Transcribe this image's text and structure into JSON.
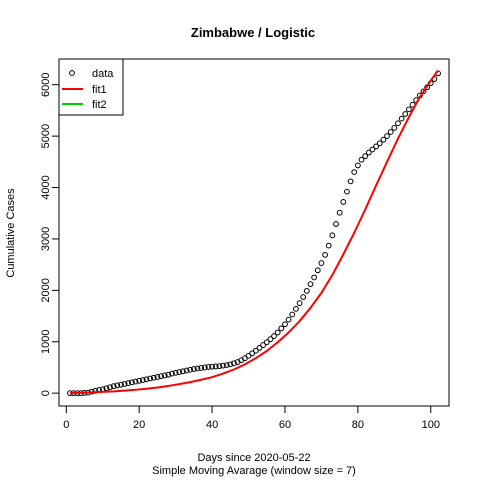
{
  "chart_data": {
    "type": "scatter",
    "title": "Zimbabwe / Logistic",
    "xlabel": "Days since 2020-05-22",
    "subtitle": "Simple Moving Avarage (window size = 7)",
    "ylabel": "Cumulative Cases",
    "xlim": [
      -2,
      105
    ],
    "ylim": [
      -250,
      6500
    ],
    "x_ticks": [
      0,
      20,
      40,
      60,
      80,
      100
    ],
    "y_ticks": [
      0,
      1000,
      2000,
      3000,
      4000,
      5000,
      6000
    ],
    "legend": {
      "position": "top-left",
      "entries": [
        {
          "label": "data",
          "symbol": "open-circle",
          "color": "#000000"
        },
        {
          "label": "fit1",
          "symbol": "line",
          "color": "#ff0000"
        },
        {
          "label": "fit2",
          "symbol": "line",
          "color": "#00cd00"
        }
      ]
    },
    "series": [
      {
        "name": "data",
        "kind": "points",
        "color": "#000000",
        "x": [
          1,
          2,
          3,
          4,
          5,
          6,
          7,
          8,
          9,
          10,
          11,
          12,
          13,
          14,
          15,
          16,
          17,
          18,
          19,
          20,
          21,
          22,
          23,
          24,
          25,
          26,
          27,
          28,
          29,
          30,
          31,
          32,
          33,
          34,
          35,
          36,
          37,
          38,
          39,
          40,
          41,
          42,
          43,
          44,
          45,
          46,
          47,
          48,
          49,
          50,
          51,
          52,
          53,
          54,
          55,
          56,
          57,
          58,
          59,
          60,
          61,
          62,
          63,
          64,
          65,
          66,
          67,
          68,
          69,
          70,
          71,
          72,
          73,
          74,
          75,
          76,
          77,
          78,
          79,
          80,
          81,
          82,
          83,
          84,
          85,
          86,
          87,
          88,
          89,
          90,
          91,
          92,
          93,
          94,
          95,
          96,
          97,
          98,
          99,
          100,
          101,
          102
        ],
        "y": [
          0,
          0,
          0,
          0,
          5,
          10,
          30,
          45,
          60,
          75,
          95,
          115,
          135,
          150,
          165,
          180,
          195,
          210,
          225,
          240,
          255,
          270,
          285,
          300,
          315,
          330,
          345,
          360,
          380,
          395,
          410,
          425,
          440,
          455,
          470,
          480,
          490,
          500,
          510,
          515,
          520,
          525,
          535,
          545,
          560,
          580,
          605,
          640,
          680,
          725,
          775,
          825,
          880,
          935,
          990,
          1050,
          1110,
          1180,
          1260,
          1340,
          1430,
          1530,
          1640,
          1750,
          1870,
          1990,
          2120,
          2250,
          2390,
          2530,
          2690,
          2870,
          3070,
          3290,
          3510,
          3720,
          3920,
          4120,
          4300,
          4430,
          4540,
          4610,
          4680,
          4740,
          4800,
          4860,
          4930,
          5000,
          5080,
          5160,
          5250,
          5340,
          5430,
          5520,
          5610,
          5700,
          5790,
          5870,
          5950,
          6030,
          6110,
          6220
        ]
      },
      {
        "name": "fit1",
        "kind": "line",
        "color": "#ff0000",
        "x": [
          1,
          4,
          7,
          10,
          13,
          16,
          19,
          22,
          25,
          28,
          31,
          34,
          37,
          40,
          43,
          46,
          49,
          52,
          55,
          58,
          61,
          64,
          67,
          70,
          73,
          76,
          79,
          82,
          85,
          88,
          91,
          94,
          97,
          100,
          102
        ],
        "y": [
          0,
          5,
          15,
          25,
          35,
          50,
          65,
          85,
          110,
          140,
          175,
          215,
          260,
          310,
          380,
          460,
          560,
          680,
          820,
          990,
          1180,
          1400,
          1660,
          1950,
          2300,
          2700,
          3120,
          3570,
          4040,
          4500,
          4950,
          5370,
          5760,
          6080,
          6280
        ]
      },
      {
        "name": "fit2",
        "kind": "line",
        "color": "#00cd00",
        "x": [],
        "y": []
      }
    ]
  }
}
